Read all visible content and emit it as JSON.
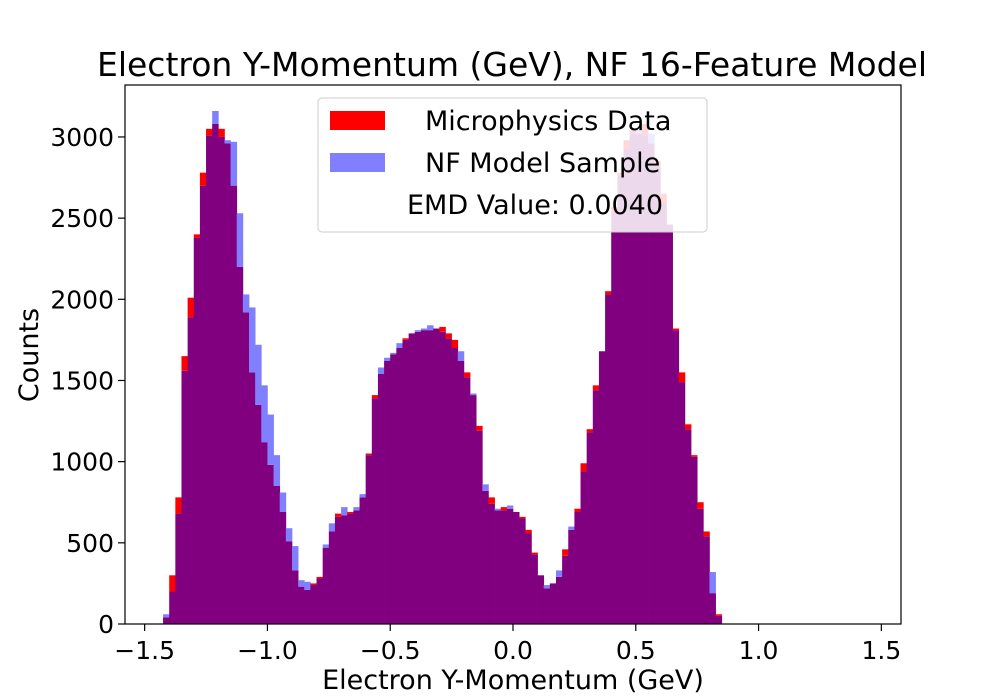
{
  "chart_data": {
    "type": "histogram",
    "title": "Electron Y-Momentum (GeV), NF 16-Feature Model",
    "xlabel": "Electron Y-Momentum (GeV)",
    "ylabel": "Counts",
    "xlim": [
      -1.58,
      1.58
    ],
    "ylim": [
      0,
      3320
    ],
    "xticks": [
      -1.5,
      -1.0,
      -0.5,
      0.0,
      0.5,
      1.0,
      1.5
    ],
    "xtick_labels": [
      "−1.5",
      "−1.0",
      "−0.5",
      "0.0",
      "0.5",
      "1.0",
      "1.5"
    ],
    "yticks": [
      0,
      500,
      1000,
      1500,
      2000,
      2500,
      3000
    ],
    "ytick_labels": [
      "0",
      "500",
      "1000",
      "1500",
      "2000",
      "2500",
      "3000"
    ],
    "bin_start": -1.5,
    "bin_width": 0.025,
    "legend": {
      "position": "upper center",
      "entries": [
        "Microphysics Data",
        "NF Model Sample"
      ],
      "annotation": "EMD Value: 0.0040"
    },
    "colors": {
      "data": "#ff0000",
      "model": "#8080ff",
      "overlap": "#800080"
    },
    "series": [
      {
        "name": "Microphysics Data",
        "values": [
          0,
          0,
          0,
          40,
          300,
          780,
          1650,
          2010,
          2400,
          2780,
          3050,
          3080,
          3050,
          2960,
          2700,
          2200,
          1920,
          1550,
          1350,
          1120,
          980,
          850,
          690,
          510,
          330,
          230,
          210,
          250,
          290,
          470,
          570,
          680,
          670,
          690,
          700,
          780,
          1050,
          1410,
          1540,
          1620,
          1660,
          1700,
          1760,
          1790,
          1800,
          1810,
          1810,
          1820,
          1830,
          1790,
          1750,
          1620,
          1550,
          1410,
          1220,
          820,
          780,
          700,
          720,
          710,
          690,
          660,
          580,
          440,
          300,
          220,
          250,
          290,
          460,
          580,
          710,
          990,
          1200,
          1470,
          1680,
          2050,
          2570,
          2780,
          2980,
          3040,
          3020,
          3080,
          2960,
          2850,
          2650,
          2460,
          1820,
          1550,
          1230,
          1040,
          750,
          570,
          190,
          60,
          0,
          0,
          0,
          0
        ]
      },
      {
        "name": "NF Model Sample",
        "values": [
          0,
          0,
          0,
          60,
          200,
          680,
          1560,
          1890,
          2380,
          2700,
          3010,
          3160,
          3000,
          2980,
          2970,
          2530,
          2030,
          1950,
          1720,
          1470,
          1290,
          1040,
          810,
          590,
          480,
          270,
          260,
          240,
          280,
          490,
          620,
          660,
          720,
          680,
          720,
          800,
          1040,
          1390,
          1580,
          1640,
          1670,
          1730,
          1750,
          1790,
          1810,
          1820,
          1840,
          1820,
          1800,
          1760,
          1700,
          1680,
          1520,
          1420,
          1190,
          860,
          740,
          710,
          700,
          730,
          690,
          650,
          560,
          430,
          300,
          240,
          250,
          330,
          420,
          600,
          690,
          940,
          1180,
          1440,
          1680,
          2030,
          2540,
          2760,
          2930,
          3020,
          3050,
          3010,
          3020,
          2830,
          2590,
          2460,
          1810,
          1490,
          1200,
          1030,
          710,
          540,
          320,
          50,
          0,
          0,
          0,
          0
        ]
      }
    ]
  }
}
